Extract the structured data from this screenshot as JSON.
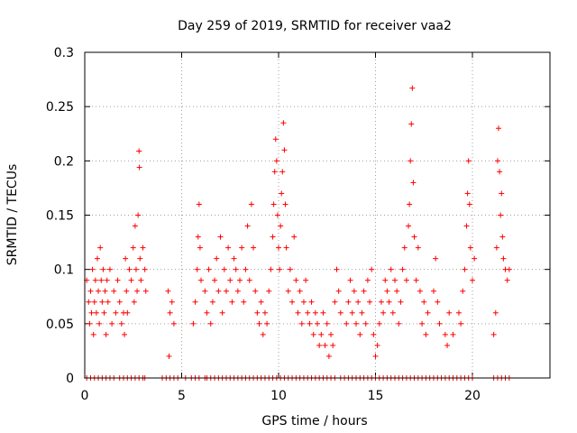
{
  "chart_data": {
    "type": "scatter",
    "title": "Day 259 of 2019, SRMTID for receiver vaa2",
    "xlabel": "GPS time / hours",
    "ylabel": "SRMTID / TECUs",
    "xlim": [
      0,
      24
    ],
    "ylim": [
      0,
      0.3
    ],
    "xticks": [
      0,
      5,
      10,
      15,
      20
    ],
    "xtick_labels": [
      "0",
      "5",
      "10",
      "15",
      "20"
    ],
    "yticks": [
      0,
      0.05,
      0.1,
      0.15,
      0.2,
      0.25,
      0.3
    ],
    "ytick_labels": [
      "0",
      "0.05",
      "0.1",
      "0.15",
      "0.2",
      "0.25",
      "0.3"
    ],
    "grid": true,
    "marker": "+",
    "color": "#ff0000",
    "series": [
      {
        "name": "SRMTID",
        "points": [
          [
            0.1,
            0.09
          ],
          [
            0.2,
            0.07
          ],
          [
            0.25,
            0.05
          ],
          [
            0.3,
            0.08
          ],
          [
            0.35,
            0.06
          ],
          [
            0.4,
            0.1
          ],
          [
            0.45,
            0.04
          ],
          [
            0.5,
            0.07
          ],
          [
            0.55,
            0.09
          ],
          [
            0.6,
            0.06
          ],
          [
            0.65,
            0.11
          ],
          [
            0.7,
            0.08
          ],
          [
            0.75,
            0.05
          ],
          [
            0.8,
            0.12
          ],
          [
            0.85,
            0.09
          ],
          [
            0.9,
            0.07
          ],
          [
            0.95,
            0.1
          ],
          [
            1.0,
            0.06
          ],
          [
            1.05,
            0.08
          ],
          [
            1.1,
            0.04
          ],
          [
            1.15,
            0.09
          ],
          [
            1.2,
            0.07
          ],
          [
            1.3,
            0.1
          ],
          [
            1.4,
            0.05
          ],
          [
            1.5,
            0.08
          ],
          [
            1.6,
            0.06
          ],
          [
            1.7,
            0.09
          ],
          [
            1.8,
            0.07
          ],
          [
            1.9,
            0.05
          ],
          [
            2.0,
            0.06
          ],
          [
            2.05,
            0.04
          ],
          [
            2.1,
            0.11
          ],
          [
            2.15,
            0.08
          ],
          [
            2.2,
            0.06
          ],
          [
            2.3,
            0.1
          ],
          [
            2.4,
            0.09
          ],
          [
            2.5,
            0.12
          ],
          [
            2.55,
            0.07
          ],
          [
            2.6,
            0.14
          ],
          [
            2.65,
            0.1
          ],
          [
            2.7,
            0.08
          ],
          [
            2.75,
            0.15
          ],
          [
            2.8,
            0.209
          ],
          [
            2.82,
            0.194
          ],
          [
            2.85,
            0.11
          ],
          [
            2.9,
            0.09
          ],
          [
            3.0,
            0.12
          ],
          [
            3.1,
            0.1
          ],
          [
            3.15,
            0.08
          ],
          [
            4.3,
            0.08
          ],
          [
            4.4,
            0.06
          ],
          [
            4.5,
            0.07
          ],
          [
            4.35,
            0.02
          ],
          [
            4.6,
            0.05
          ],
          [
            5.6,
            0.05
          ],
          [
            5.7,
            0.07
          ],
          [
            5.8,
            0.1
          ],
          [
            5.85,
            0.13
          ],
          [
            5.9,
            0.16
          ],
          [
            5.95,
            0.12
          ],
          [
            6.0,
            0.09
          ],
          [
            6.2,
            0.08
          ],
          [
            6.3,
            0.06
          ],
          [
            6.4,
            0.1
          ],
          [
            6.5,
            0.05
          ],
          [
            6.6,
            0.07
          ],
          [
            6.7,
            0.09
          ],
          [
            6.8,
            0.11
          ],
          [
            6.9,
            0.08
          ],
          [
            7.0,
            0.13
          ],
          [
            7.1,
            0.06
          ],
          [
            7.2,
            0.1
          ],
          [
            7.3,
            0.08
          ],
          [
            7.4,
            0.12
          ],
          [
            7.5,
            0.09
          ],
          [
            7.6,
            0.07
          ],
          [
            7.7,
            0.11
          ],
          [
            7.8,
            0.1
          ],
          [
            7.9,
            0.08
          ],
          [
            8.0,
            0.09
          ],
          [
            8.1,
            0.12
          ],
          [
            8.2,
            0.07
          ],
          [
            8.3,
            0.1
          ],
          [
            8.4,
            0.14
          ],
          [
            8.5,
            0.09
          ],
          [
            8.6,
            0.16
          ],
          [
            8.7,
            0.12
          ],
          [
            8.8,
            0.08
          ],
          [
            8.9,
            0.06
          ],
          [
            9.0,
            0.05
          ],
          [
            9.1,
            0.07
          ],
          [
            9.2,
            0.04
          ],
          [
            9.3,
            0.06
          ],
          [
            9.4,
            0.05
          ],
          [
            9.5,
            0.08
          ],
          [
            9.6,
            0.1
          ],
          [
            9.7,
            0.13
          ],
          [
            9.75,
            0.16
          ],
          [
            9.8,
            0.19
          ],
          [
            9.85,
            0.22
          ],
          [
            9.9,
            0.2
          ],
          [
            9.95,
            0.15
          ],
          [
            10.0,
            0.12
          ],
          [
            10.05,
            0.1
          ],
          [
            10.1,
            0.14
          ],
          [
            10.15,
            0.17
          ],
          [
            10.2,
            0.19
          ],
          [
            10.25,
            0.235
          ],
          [
            10.3,
            0.21
          ],
          [
            10.35,
            0.16
          ],
          [
            10.4,
            0.12
          ],
          [
            10.5,
            0.08
          ],
          [
            10.6,
            0.1
          ],
          [
            10.7,
            0.07
          ],
          [
            10.8,
            0.13
          ],
          [
            10.9,
            0.09
          ],
          [
            11.0,
            0.06
          ],
          [
            11.1,
            0.08
          ],
          [
            11.2,
            0.05
          ],
          [
            11.3,
            0.07
          ],
          [
            11.4,
            0.09
          ],
          [
            11.5,
            0.06
          ],
          [
            11.6,
            0.05
          ],
          [
            11.7,
            0.07
          ],
          [
            11.8,
            0.04
          ],
          [
            11.9,
            0.06
          ],
          [
            12.0,
            0.05
          ],
          [
            12.1,
            0.03
          ],
          [
            12.2,
            0.04
          ],
          [
            12.3,
            0.06
          ],
          [
            12.4,
            0.03
          ],
          [
            12.5,
            0.05
          ],
          [
            12.6,
            0.02
          ],
          [
            12.7,
            0.04
          ],
          [
            12.8,
            0.03
          ],
          [
            12.9,
            0.07
          ],
          [
            13.0,
            0.1
          ],
          [
            13.1,
            0.08
          ],
          [
            13.2,
            0.06
          ],
          [
            13.5,
            0.05
          ],
          [
            13.6,
            0.07
          ],
          [
            13.7,
            0.09
          ],
          [
            13.8,
            0.06
          ],
          [
            13.9,
            0.08
          ],
          [
            14.0,
            0.05
          ],
          [
            14.1,
            0.07
          ],
          [
            14.2,
            0.04
          ],
          [
            14.3,
            0.06
          ],
          [
            14.4,
            0.08
          ],
          [
            14.5,
            0.05
          ],
          [
            14.6,
            0.09
          ],
          [
            14.7,
            0.07
          ],
          [
            14.8,
            0.1
          ],
          [
            14.9,
            0.04
          ],
          [
            15.0,
            0.02
          ],
          [
            15.1,
            0.03
          ],
          [
            15.2,
            0.05
          ],
          [
            15.3,
            0.07
          ],
          [
            15.4,
            0.06
          ],
          [
            15.5,
            0.09
          ],
          [
            15.6,
            0.08
          ],
          [
            15.7,
            0.07
          ],
          [
            15.8,
            0.1
          ],
          [
            15.9,
            0.06
          ],
          [
            16.0,
            0.09
          ],
          [
            16.1,
            0.08
          ],
          [
            16.2,
            0.05
          ],
          [
            16.3,
            0.07
          ],
          [
            16.4,
            0.1
          ],
          [
            16.5,
            0.12
          ],
          [
            16.6,
            0.09
          ],
          [
            16.7,
            0.14
          ],
          [
            16.75,
            0.16
          ],
          [
            16.8,
            0.2
          ],
          [
            16.85,
            0.234
          ],
          [
            16.9,
            0.267
          ],
          [
            16.95,
            0.18
          ],
          [
            17.0,
            0.13
          ],
          [
            17.1,
            0.09
          ],
          [
            17.2,
            0.12
          ],
          [
            17.3,
            0.08
          ],
          [
            17.4,
            0.05
          ],
          [
            17.5,
            0.07
          ],
          [
            17.6,
            0.04
          ],
          [
            17.7,
            0.06
          ],
          [
            18.0,
            0.08
          ],
          [
            18.1,
            0.11
          ],
          [
            18.2,
            0.07
          ],
          [
            18.3,
            0.05
          ],
          [
            18.6,
            0.04
          ],
          [
            18.7,
            0.03
          ],
          [
            18.8,
            0.06
          ],
          [
            19.0,
            0.04
          ],
          [
            19.3,
            0.06
          ],
          [
            19.4,
            0.05
          ],
          [
            19.5,
            0.08
          ],
          [
            19.6,
            0.1
          ],
          [
            19.7,
            0.14
          ],
          [
            19.75,
            0.17
          ],
          [
            19.8,
            0.2
          ],
          [
            19.85,
            0.16
          ],
          [
            19.9,
            0.12
          ],
          [
            20.0,
            0.09
          ],
          [
            20.1,
            0.11
          ],
          [
            21.1,
            0.04
          ],
          [
            21.2,
            0.06
          ],
          [
            21.25,
            0.12
          ],
          [
            21.3,
            0.2
          ],
          [
            21.35,
            0.23
          ],
          [
            21.4,
            0.19
          ],
          [
            21.45,
            0.15
          ],
          [
            21.5,
            0.17
          ],
          [
            21.55,
            0.13
          ],
          [
            21.6,
            0.11
          ],
          [
            21.7,
            0.1
          ],
          [
            21.8,
            0.09
          ],
          [
            21.9,
            0.1
          ]
        ]
      }
    ],
    "zero_points_x": [
      0.1,
      0.3,
      0.5,
      0.7,
      0.9,
      1.1,
      1.3,
      1.5,
      1.8,
      2.0,
      2.2,
      2.4,
      2.6,
      2.8,
      3.0,
      3.1,
      4.0,
      4.2,
      4.4,
      4.6,
      4.8,
      5.2,
      5.5,
      5.7,
      5.9,
      6.2,
      6.3,
      6.5,
      6.7,
      6.9,
      7.1,
      7.3,
      7.5,
      7.7,
      7.9,
      8.1,
      8.3,
      8.5,
      8.7,
      8.9,
      9.1,
      9.3,
      9.5,
      9.7,
      9.9,
      10.1,
      10.3,
      10.5,
      10.7,
      10.9,
      11.1,
      11.3,
      11.5,
      11.7,
      11.9,
      12.1,
      12.3,
      12.5,
      12.7,
      12.9,
      13.2,
      13.4,
      13.6,
      13.8,
      14.0,
      14.2,
      14.4,
      14.6,
      14.8,
      15.0,
      15.2,
      15.4,
      15.6,
      15.8,
      16.0,
      16.2,
      16.4,
      16.6,
      16.8,
      17.0,
      17.2,
      17.4,
      17.6,
      17.8,
      18.0,
      18.2,
      18.4,
      18.6,
      18.8,
      19.0,
      19.2,
      19.4,
      19.6,
      19.8,
      20.0,
      21.1,
      21.3,
      21.5,
      21.7,
      21.9
    ]
  }
}
